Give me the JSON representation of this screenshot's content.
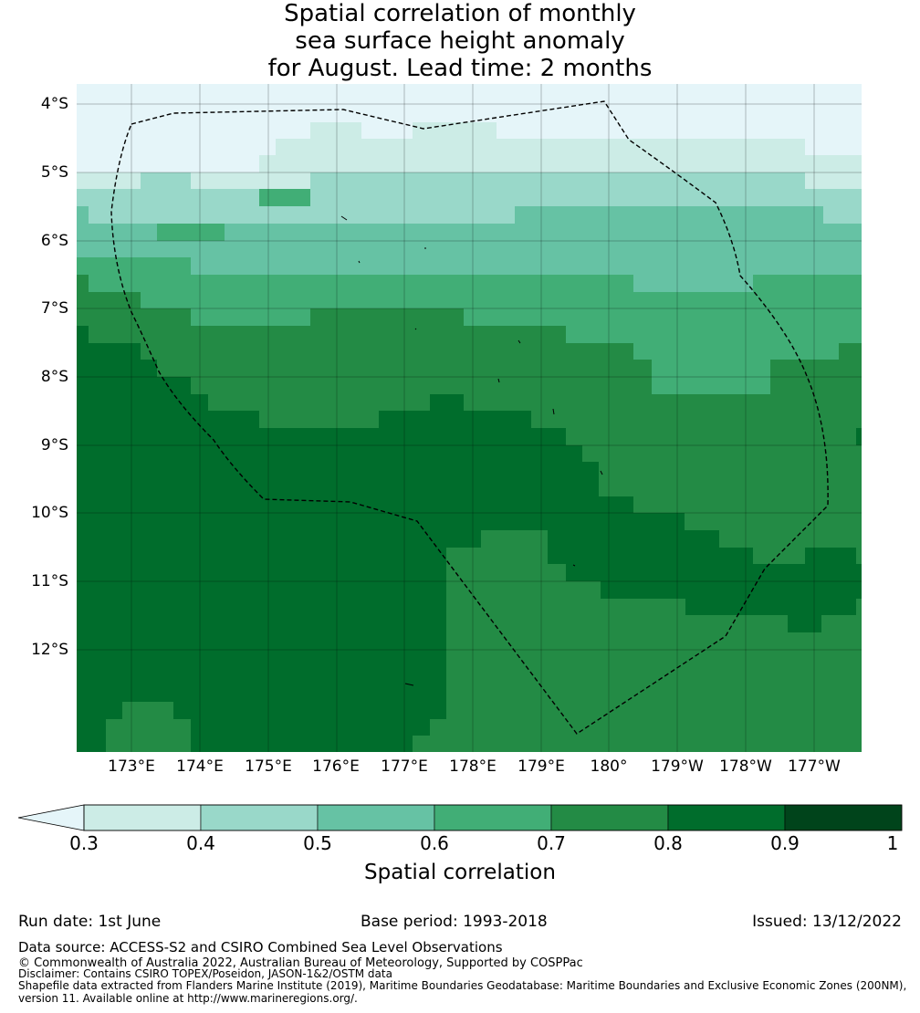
{
  "title_lines": [
    "Spatial correlation of monthly",
    "sea surface height anomaly",
    "for August. Lead time: 2 months"
  ],
  "lat_labels": [
    "4°S",
    "5°S",
    "6°S",
    "7°S",
    "8°S",
    "9°S",
    "10°S",
    "11°S",
    "12°S"
  ],
  "lon_labels": [
    "173°E",
    "174°E",
    "175°E",
    "176°E",
    "177°E",
    "178°E",
    "179°E",
    "180°",
    "179°W",
    "178°W",
    "177°W"
  ],
  "colorbar": {
    "label": "Spatial correlation",
    "ticks": [
      "0.3",
      "0.4",
      "0.5",
      "0.6",
      "0.7",
      "0.8",
      "0.9",
      "1"
    ],
    "colors": [
      "#e5f5f9",
      "#ccece6",
      "#99d8c9",
      "#66c2a4",
      "#41ae76",
      "#238b45",
      "#006d2c",
      "#00441b"
    ]
  },
  "meta": {
    "run_date": "Run date: 1st June",
    "base_period": "Base period: 1993-2018",
    "issued": "Issued: 13/12/2022"
  },
  "footer": {
    "data_source": "Data source: ACCESS-S2 and CSIRO Combined Sea Level Observations",
    "copyright": "© Commonwealth of Australia 2022, Australian Bureau of Meteorology, Supported by COSPPac",
    "disclaimer": "Disclaimer: Contains CSIRO TOPEX/Poseidon, JASON-1&2/OSTM data",
    "shapefile_1": "Shapefile data extracted from Flanders Marine Institute (2019), Maritime Boundaries Geodatabase: Maritime Boundaries and Exclusive Economic Zones (200NM),",
    "shapefile_2": "version 11. Available online at http://www.marineregions.org/."
  }
}
